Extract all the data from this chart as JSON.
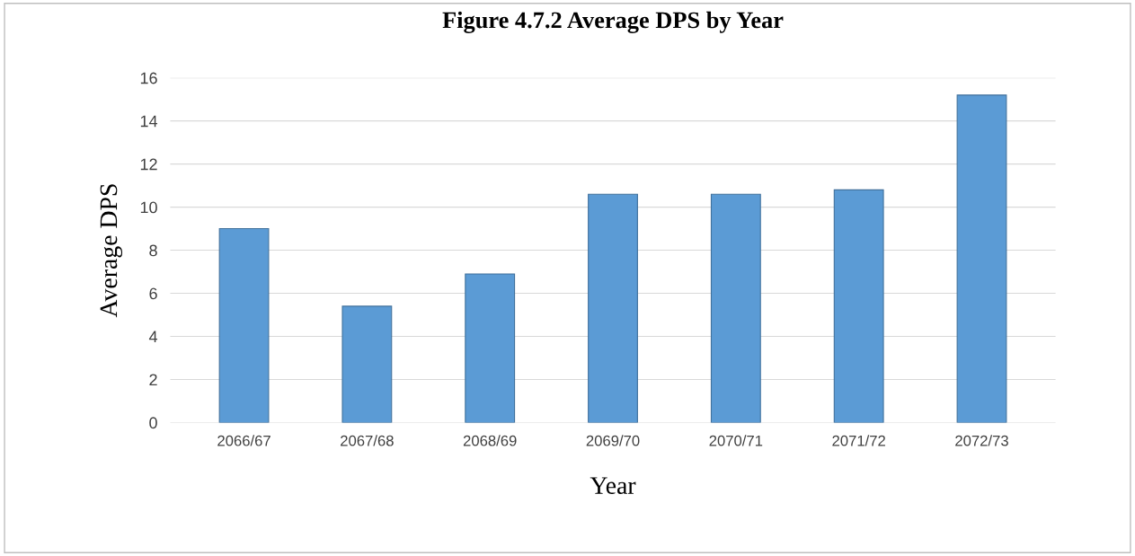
{
  "chart_data": {
    "type": "bar",
    "title": "Figure 4.7.2 Average DPS by Year",
    "xlabel": "Year",
    "ylabel": "Average DPS",
    "categories": [
      "2066/67",
      "2067/68",
      "2068/69",
      "2069/70",
      "2070/71",
      "2071/72",
      "2072/73"
    ],
    "values": [
      9.0,
      5.4,
      6.9,
      10.6,
      10.6,
      10.8,
      15.2
    ],
    "color": "#5b9bd5",
    "ylim": [
      0,
      16
    ],
    "yticks": [
      0,
      2,
      4,
      6,
      8,
      10,
      12,
      14,
      16
    ],
    "grid": "y",
    "legend": false
  }
}
